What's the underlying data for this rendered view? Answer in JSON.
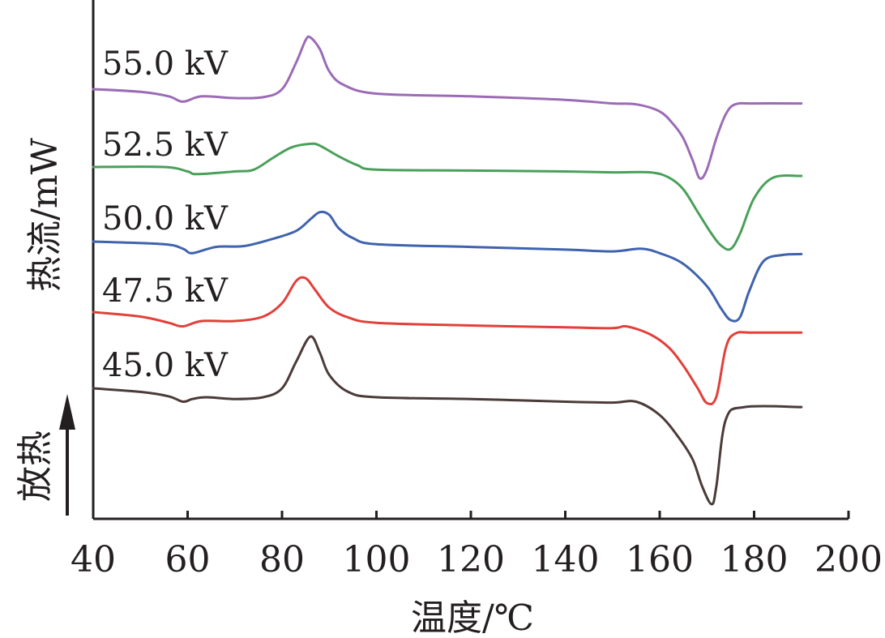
{
  "chart_data": {
    "type": "line",
    "xlabel": "温度/℃",
    "ylabel": "热流/mW",
    "y_direction_label": "放热",
    "xlim": [
      40,
      200
    ],
    "xticks": [
      "40",
      "60",
      "80",
      "100",
      "120",
      "140",
      "160",
      "180",
      "200"
    ],
    "series": [
      {
        "name": "55.0 kV",
        "color": "#9b6cb5",
        "x": [
          40,
          50,
          56,
          59,
          63,
          70,
          76,
          80,
          83,
          85,
          86,
          88,
          90,
          93,
          100,
          120,
          140,
          150,
          155,
          160,
          163,
          165,
          167,
          168.5,
          170,
          172,
          174,
          176,
          180,
          190
        ],
        "y": [
          0.0,
          -0.3,
          -0.8,
          -1.4,
          -0.8,
          -1.0,
          -0.9,
          0.0,
          3.0,
          5.5,
          5.8,
          4.5,
          2.0,
          0.5,
          -0.5,
          -0.8,
          -1.2,
          -1.6,
          -1.7,
          -2.5,
          -4.0,
          -5.5,
          -8.0,
          -10.0,
          -9.0,
          -5.5,
          -2.8,
          -1.7,
          -1.6,
          -1.6
        ]
      },
      {
        "name": "52.5 kV",
        "color": "#4aa05a",
        "x": [
          40,
          55,
          60,
          62,
          70,
          74,
          78,
          82,
          86,
          88,
          92,
          96,
          100,
          120,
          140,
          150,
          158,
          162,
          165,
          168,
          171,
          173,
          175,
          177,
          180,
          184,
          190
        ],
        "y": [
          0.0,
          0.0,
          -0.5,
          -0.8,
          -0.5,
          -0.3,
          1.0,
          2.2,
          2.6,
          2.4,
          1.2,
          0.2,
          -0.3,
          -0.4,
          -0.5,
          -0.6,
          -0.6,
          -1.2,
          -2.5,
          -5.0,
          -7.5,
          -8.8,
          -9.2,
          -7.5,
          -3.5,
          -1.2,
          -1.0
        ]
      },
      {
        "name": "50.0 kV",
        "color": "#3f63ae",
        "x": [
          40,
          55,
          59,
          61,
          66,
          72,
          78,
          83,
          86,
          88,
          90,
          92,
          95,
          100,
          120,
          140,
          150,
          156,
          160,
          165,
          170,
          173,
          175,
          177,
          179,
          182,
          186,
          190
        ],
        "y": [
          0.0,
          -0.3,
          -0.8,
          -1.3,
          -0.6,
          -0.5,
          0.3,
          1.2,
          2.5,
          3.3,
          3.0,
          1.5,
          0.4,
          -0.3,
          -0.6,
          -0.9,
          -1.1,
          -0.8,
          -1.3,
          -2.5,
          -5.0,
          -7.5,
          -8.8,
          -8.5,
          -5.5,
          -2.2,
          -1.5,
          -1.4
        ]
      },
      {
        "name": "47.5 kV",
        "color": "#e2403a",
        "x": [
          40,
          50,
          56,
          59,
          63,
          70,
          76,
          80,
          83,
          85,
          87,
          90,
          94,
          100,
          120,
          140,
          150,
          153,
          158,
          162,
          165,
          168,
          170,
          172,
          174,
          176,
          180,
          190
        ],
        "y": [
          0.0,
          -0.5,
          -1.2,
          -1.6,
          -1.0,
          -1.0,
          -0.5,
          1.0,
          3.5,
          3.8,
          2.5,
          0.5,
          -0.6,
          -1.2,
          -1.5,
          -1.7,
          -1.8,
          -1.6,
          -2.5,
          -4.0,
          -6.0,
          -8.5,
          -10.2,
          -9.5,
          -4.0,
          -2.4,
          -2.3,
          -2.3
        ]
      },
      {
        "name": "45.0 kV",
        "color": "#4b3b39",
        "x": [
          40,
          50,
          56,
          59,
          61,
          64,
          70,
          76,
          80,
          83,
          86,
          88,
          90,
          94,
          100,
          120,
          140,
          150,
          155,
          160,
          164,
          167,
          169,
          171,
          172,
          174,
          178,
          190
        ],
        "y": [
          0.0,
          -0.4,
          -0.9,
          -1.5,
          -1.2,
          -1.0,
          -1.2,
          -1.0,
          0.0,
          3.0,
          5.8,
          4.0,
          1.5,
          -0.4,
          -1.0,
          -1.2,
          -1.5,
          -1.6,
          -1.5,
          -3.0,
          -5.5,
          -8.0,
          -11.0,
          -13.0,
          -11.0,
          -3.5,
          -2.1,
          -2.1
        ]
      }
    ]
  }
}
